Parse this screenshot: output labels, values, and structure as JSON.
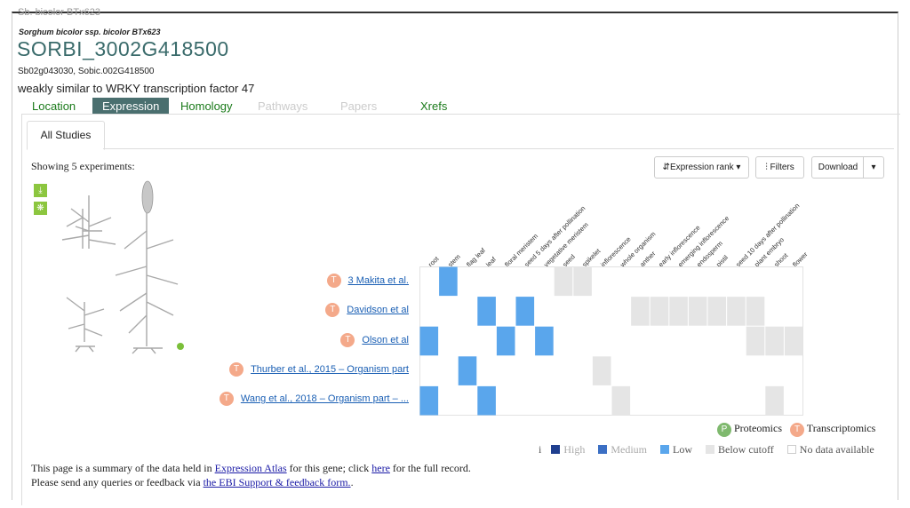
{
  "header": {
    "cut_text": "Sb. bicolor BTx623",
    "species": "Sorghum bicolor ssp. bicolor BTx623",
    "gene_id": "SORBI_3002G418500",
    "synonyms": "Sb02g043030, Sobic.002G418500",
    "description": "weakly similar to WRKY transcription factor 47"
  },
  "tabs": [
    {
      "label": "Location",
      "state": "normal"
    },
    {
      "label": "Expression",
      "state": "active"
    },
    {
      "label": "Homology",
      "state": "normal"
    },
    {
      "label": "Pathways",
      "state": "disabled"
    },
    {
      "label": "Papers",
      "state": "disabled"
    },
    {
      "label": "Xrefs",
      "state": "normal"
    }
  ],
  "subtab": "All Studies",
  "showing_text": "Showing 5 experiments:",
  "toolbar": {
    "rank_label": "Expression rank",
    "filters_label": "Filters",
    "download_label": "Download"
  },
  "tissues": [
    "root",
    "stem",
    "flag leaf",
    "leaf",
    "floral meristem",
    "seed 5 days after pollination",
    "vegetative meristem",
    "seed",
    "spikelet",
    "inflorescence",
    "whole organism",
    "anther",
    "early inflorescence",
    "emerging inflorescence",
    "endosperm",
    "pistil",
    "seed 10 days after pollination",
    "plant embryo",
    "shoot",
    "flower"
  ],
  "experiments": [
    {
      "label": "3 Makita et al.",
      "badge": "T",
      "cells": [
        "",
        "L",
        "",
        "",
        "",
        "",
        "",
        "B",
        "B",
        "",
        "",
        "",
        "",
        "",
        "",
        "",
        "",
        "",
        "",
        ""
      ]
    },
    {
      "label": "Davidson et al",
      "badge": "T",
      "cells": [
        "",
        "",
        "",
        "L",
        "",
        "L",
        "",
        "",
        "",
        "",
        "",
        "B",
        "B",
        "B",
        "B",
        "B",
        "B",
        "B",
        "",
        ""
      ]
    },
    {
      "label": "Olson et al",
      "badge": "T",
      "cells": [
        "L",
        "",
        "",
        "",
        "L",
        "",
        "L",
        "",
        "",
        "",
        "",
        "",
        "",
        "",
        "",
        "",
        "",
        "B",
        "B",
        "B"
      ]
    },
    {
      "label": "Thurber et al., 2015 – Organism part",
      "badge": "T",
      "cells": [
        "",
        "",
        "L",
        "",
        "",
        "",
        "",
        "",
        "",
        "B",
        "",
        "",
        "",
        "",
        "",
        "",
        "",
        "",
        "",
        ""
      ]
    },
    {
      "label": "Wang et al., 2018 – Organism part – ...",
      "badge": "T",
      "cells": [
        "L",
        "",
        "",
        "L",
        "",
        "",
        "",
        "",
        "",
        "",
        "B",
        "",
        "",
        "",
        "",
        "",
        "",
        "",
        "B",
        ""
      ]
    }
  ],
  "legend": {
    "proteomics_badge": "P",
    "proteomics": "Proteomics",
    "transcriptomics_badge": "T",
    "transcriptomics": "Transcriptomics",
    "info": "i",
    "high": "High",
    "medium": "Medium",
    "low": "Low",
    "below": "Below cutoff",
    "nodata": "No data available",
    "colors": {
      "high": "#1f3f8f",
      "medium": "#3b6fc4",
      "low": "#5aa6ec",
      "below": "#e5e5e5",
      "nodata": "#ffffff"
    }
  },
  "footer": {
    "line1_a": "This page is a summary of the data held in ",
    "line1_link": "Expression Atlas",
    "line1_b": " for this gene; click ",
    "line1_link2": "here",
    "line1_c": " for the full record.",
    "line2_a": "Please send any queries or feedback via ",
    "line2_link": "the EBI Support & feedback form.",
    "line2_b": "."
  },
  "widget_icons": [
    "download-icon",
    "reset-icon",
    "info-icon"
  ]
}
